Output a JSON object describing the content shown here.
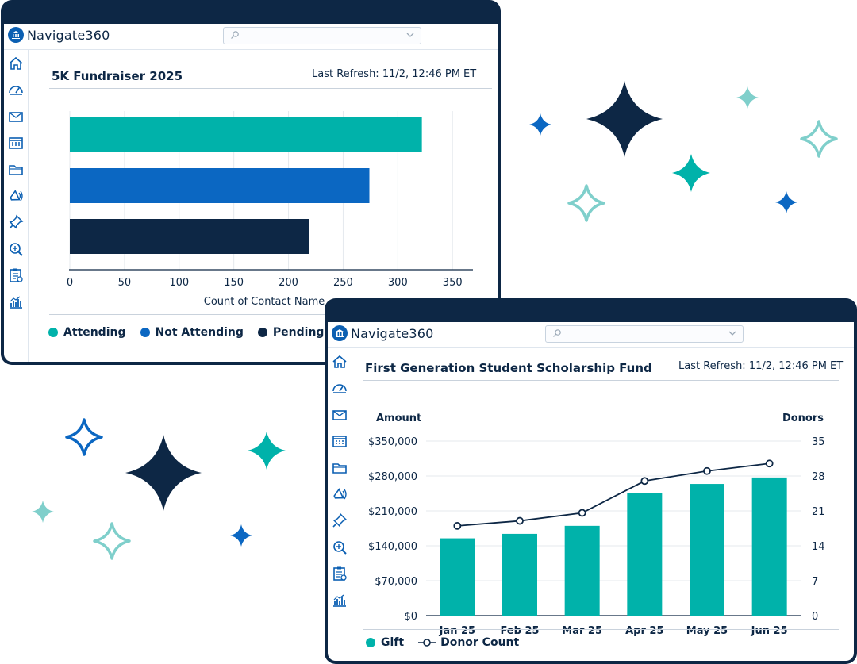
{
  "brand": {
    "name": "Navigate360"
  },
  "colors": {
    "navy": "#0d2745",
    "teal": "#00b2aa",
    "blue": "#0b67c2",
    "light_teal": "#7fcfcb"
  },
  "sidebar": {
    "icons": [
      "home-icon",
      "dashboard-gauge-icon",
      "mail-icon",
      "calendar-icon",
      "folder-icon",
      "megaphone-icon",
      "pin-icon",
      "zoom-search-icon",
      "clipboard-icon",
      "analytics-icon"
    ]
  },
  "panel1": {
    "title": "5K Fundraiser 2025",
    "refresh": "Last Refresh: 11/2, 12:46 PM ET",
    "legend": [
      {
        "label": "Attending",
        "color": "#00b2aa"
      },
      {
        "label": "Not Attending",
        "color": "#0b67c2"
      },
      {
        "label": "Pending",
        "color": "#0d2745"
      }
    ]
  },
  "panel2": {
    "title": "First Generation Student Scholarship Fund",
    "refresh": "Last Refresh: 11/2, 12:46 PM ET",
    "legend": {
      "gift": "Gift",
      "donors": "Donor Count"
    }
  },
  "chart_data": [
    {
      "type": "bar",
      "orientation": "horizontal",
      "categories": [
        "Attending",
        "Not Attending",
        "Pending"
      ],
      "values": [
        322,
        274,
        219
      ],
      "colors": [
        "#00b2aa",
        "#0b67c2",
        "#0d2745"
      ],
      "xlabel": "Count of Contact Name",
      "ylabel": "",
      "xlim": [
        0,
        360
      ],
      "xticks": [
        "0",
        "50",
        "100",
        "150",
        "200",
        "250",
        "300",
        "350"
      ],
      "grid": true,
      "legend": "bottom-left"
    },
    {
      "type": "bar",
      "categories": [
        "Jan 25",
        "Feb 25",
        "Mar 25",
        "Apr 25",
        "May 25",
        "Jun 25"
      ],
      "series": [
        {
          "name": "Gift",
          "kind": "bar",
          "axis": "left",
          "color": "#00b2aa",
          "values": [
            155000,
            164000,
            180000,
            246000,
            264000,
            277000
          ]
        },
        {
          "name": "Donor Count",
          "kind": "line",
          "axis": "right",
          "color": "#0d2745",
          "values": [
            18,
            19,
            20.6,
            27,
            29,
            30.5
          ]
        }
      ],
      "ylabel": "Amount",
      "ylabel_right": "Donors",
      "ylim": [
        0,
        350000
      ],
      "ylim_right": [
        0,
        35
      ],
      "yticks": [
        "$0",
        "$70,000",
        "$140,000",
        "$210,000",
        "$280,000",
        "$350,000"
      ],
      "yticks_right": [
        "0",
        "7",
        "14",
        "21",
        "28",
        "35"
      ],
      "grid": true,
      "legend": "bottom-left"
    }
  ]
}
